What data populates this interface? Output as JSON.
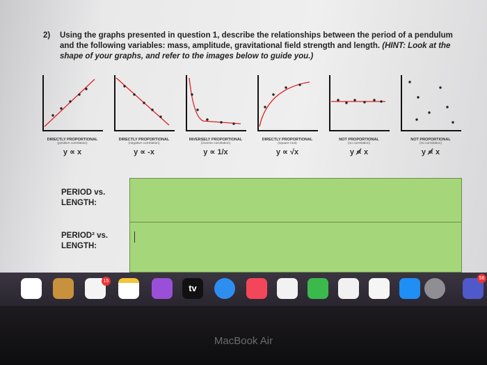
{
  "question": {
    "number": "2)",
    "text": "Using the graphs presented in question 1, describe the relationships between the period of a pendulum and the following variables: mass, amplitude, gravitational field strength and length.",
    "hint": "(HINT: Look at the shape of your graphs, and refer to the images below to guide you.)"
  },
  "graphs": [
    {
      "title": "DIRECTLY PROPORTIONAL",
      "note": "(positive correlation)",
      "formula": "y ∝ x"
    },
    {
      "title": "DIRECTLY PROPORTIONAL",
      "note": "(negative correlation)",
      "formula": "y ∝ -x"
    },
    {
      "title": "INVERSELY PROPORTIONAL",
      "note": "(inverse correlation)",
      "formula": "y ∝ 1/x"
    },
    {
      "title": "DIRECTLY PROPORTIONAL",
      "note": "(square root)",
      "formula": "y ∝ √x"
    },
    {
      "title": "NOT PROPORTIONAL",
      "note": "(no correlation)",
      "formula": "y ∝̸ x"
    },
    {
      "title": "NOT PROPORTIONAL",
      "note": "(no correlation)",
      "formula": "y ∝̸ x"
    }
  ],
  "table": {
    "rows": [
      {
        "label": "PERIOD vs. LENGTH:"
      },
      {
        "label": "PERIOD² vs. LENGTH:"
      }
    ]
  },
  "dock": {
    "badge_calendar": "15",
    "badge_teams": "56",
    "tv_label": "tv"
  },
  "bezel": {
    "label": "MacBook Air"
  }
}
